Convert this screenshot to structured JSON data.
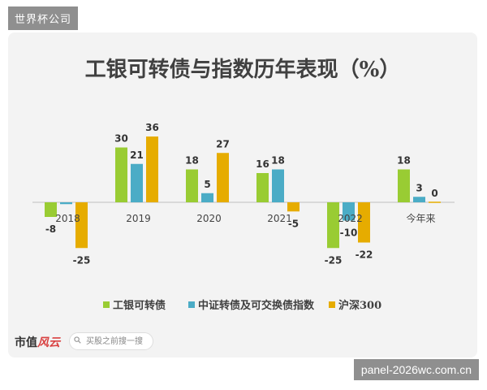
{
  "badge": "世界杯公司",
  "footer": {
    "logo_main": "市值",
    "logo_accent": "风云",
    "search_placeholder": "买股之前搜一搜"
  },
  "watermark": "panel-2026wc.com.cn",
  "colors": {
    "series1": "#99cc33",
    "series2": "#4bacc6",
    "series3": "#e6ac00",
    "zero_line": "#bfbfbf"
  },
  "chart_data": {
    "type": "bar",
    "title": "工银可转债与指数历年表现（%）",
    "categories": [
      "2018",
      "2019",
      "2020",
      "2021",
      "2022",
      "今年来"
    ],
    "series": [
      {
        "name": "工银可转债",
        "values": [
          -8,
          30,
          18,
          16,
          -25,
          18
        ]
      },
      {
        "name": "中证转债及可交换债指数",
        "values": [
          -1,
          21,
          5,
          18,
          -10,
          3
        ]
      },
      {
        "name": "沪深300",
        "values": [
          -25,
          36,
          27,
          -5,
          -22,
          0
        ]
      }
    ],
    "data_labels": [
      [
        "-8",
        "30",
        "18",
        "16",
        "-25",
        "18"
      ],
      [
        "",
        "21",
        "5",
        "18",
        "-10",
        "3"
      ],
      [
        "-25",
        "36",
        "27",
        "-5",
        "-22",
        "0"
      ]
    ],
    "ylim": [
      -30,
      45
    ],
    "grid": false,
    "legend": "bottom"
  }
}
